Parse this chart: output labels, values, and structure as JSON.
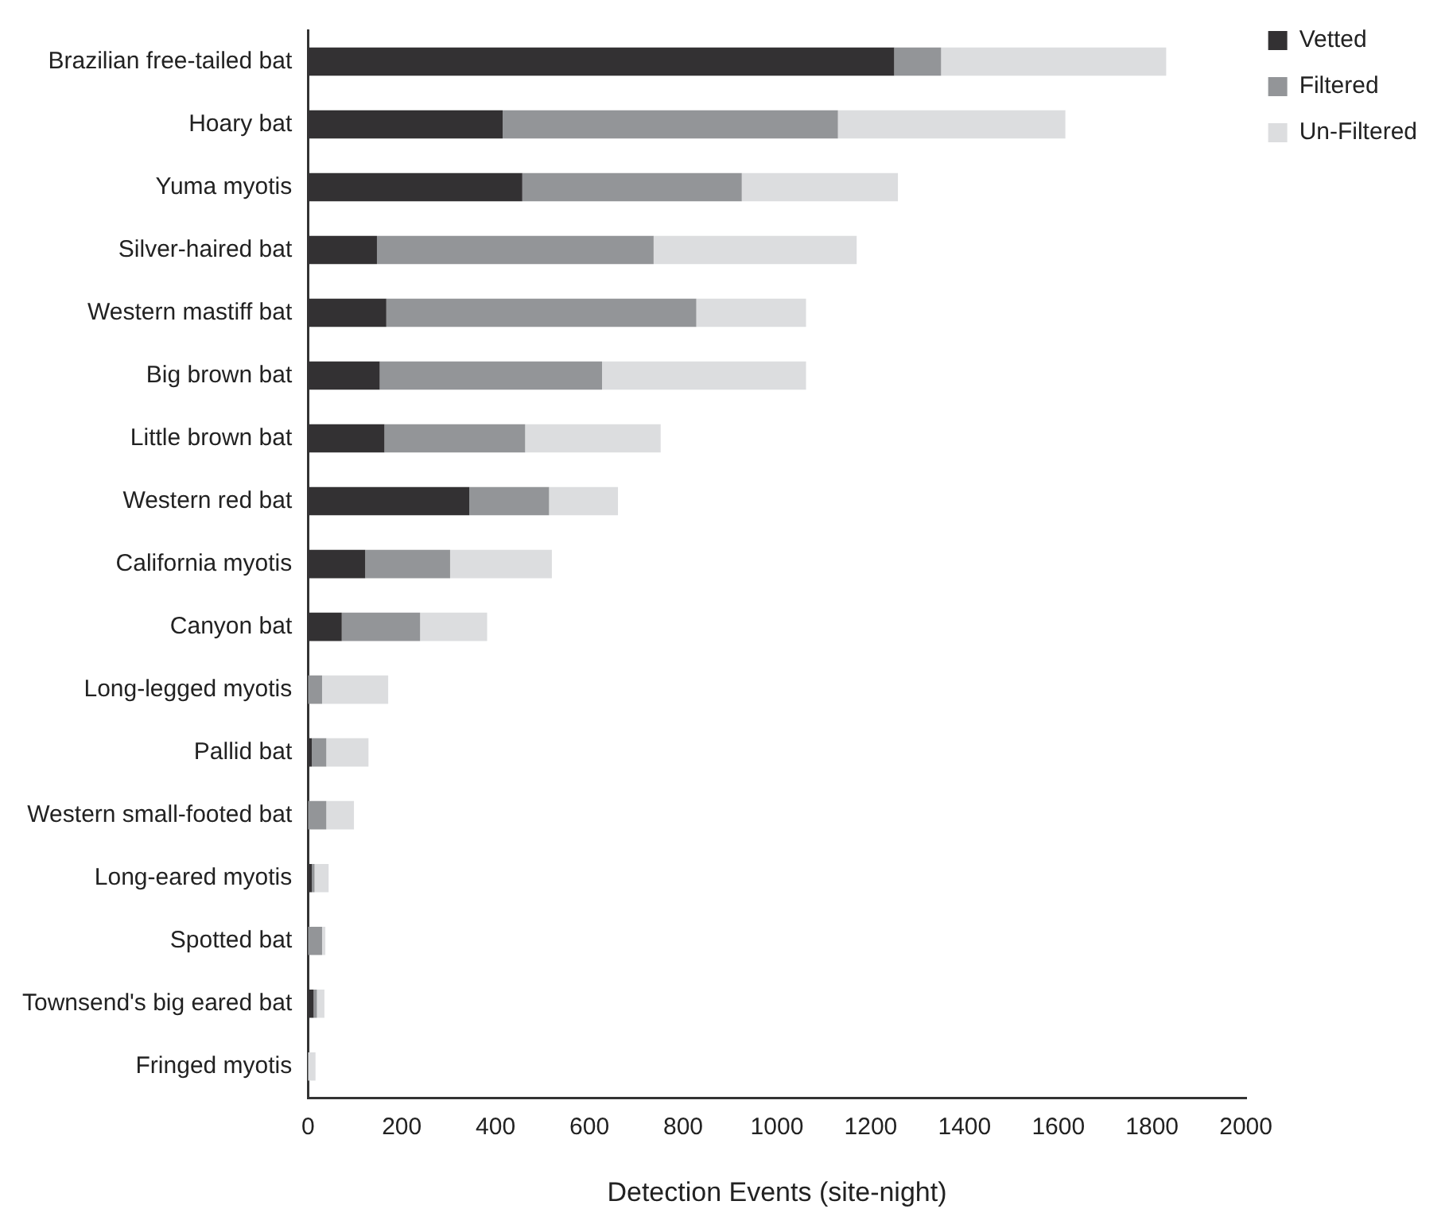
{
  "chart_data": {
    "type": "bar",
    "orientation": "horizontal",
    "stacked": true,
    "xlabel": "Detection Events (site-night)",
    "categories": [
      "Brazilian free-tailed bat",
      "Hoary bat",
      "Yuma myotis",
      "Silver-haired bat",
      "Western mastiff bat",
      "Big brown bat",
      "Little brown bat",
      "Western red bat",
      "California myotis",
      "Canyon bat",
      "Long-legged myotis",
      "Pallid bat",
      "Western small-footed bat",
      "Long-eared myotis",
      "Spotted bat",
      "Townsend's big eared bat",
      "Fringed myotis"
    ],
    "series": [
      {
        "name": "Vetted",
        "color": "#333133",
        "values": [
          1250,
          415,
          457,
          147,
          167,
          153,
          163,
          344,
          122,
          72,
          0,
          8,
          0,
          8,
          0,
          12,
          0
        ]
      },
      {
        "name": "Filtered",
        "color": "#939598",
        "values": [
          100,
          715,
          468,
          590,
          661,
          474,
          300,
          170,
          181,
          167,
          30,
          31,
          39,
          6,
          30,
          7,
          0
        ]
      },
      {
        "name": "Un-Filtered",
        "color": "#dcdddf",
        "values": [
          480,
          485,
          333,
          433,
          234,
          435,
          289,
          147,
          217,
          143,
          141,
          90,
          59,
          30,
          7,
          16,
          16
        ]
      }
    ],
    "xlim": [
      0,
      2000
    ],
    "xticks": [
      0,
      200,
      400,
      600,
      800,
      1000,
      1200,
      1400,
      1600,
      1800,
      2000
    ],
    "grid": false,
    "legend": "top right"
  }
}
